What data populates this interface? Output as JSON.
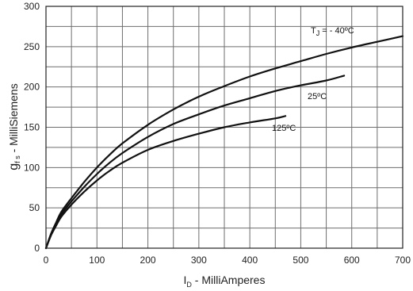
{
  "chart_data": {
    "type": "line",
    "xlabel": {
      "main": "I",
      "sub": "D",
      "rest": " - MilliAmperes"
    },
    "ylabel": {
      "main": "g",
      "sub": "f s",
      "rest": " - MilliSiemens"
    },
    "xlim": [
      0,
      700
    ],
    "ylim": [
      0,
      300
    ],
    "x_ticks": [
      0,
      100,
      200,
      300,
      400,
      500,
      600,
      700
    ],
    "y_ticks": [
      0,
      50,
      100,
      150,
      200,
      250,
      300
    ],
    "x_grid_step": 50,
    "y_grid_step": 25,
    "grid": true,
    "series": [
      {
        "name": "T  = - 40ºC",
        "name_parts": {
          "main": "T",
          "sub": "J",
          "rest": " = - 40ºC"
        },
        "x": [
          0,
          10,
          20,
          30,
          50,
          75,
          100,
          125,
          150,
          200,
          250,
          300,
          350,
          400,
          450,
          500,
          550,
          600,
          650,
          700
        ],
        "y": [
          0,
          18,
          32,
          45,
          62,
          82,
          100,
          116,
          130,
          153,
          172,
          188,
          201,
          213,
          223,
          232,
          241,
          249,
          256,
          263
        ]
      },
      {
        "name": "25ºC",
        "x": [
          0,
          10,
          20,
          30,
          50,
          75,
          100,
          125,
          150,
          200,
          250,
          300,
          350,
          400,
          450,
          500,
          550,
          585
        ],
        "y": [
          0,
          17,
          30,
          42,
          58,
          76,
          92,
          106,
          118,
          138,
          154,
          166,
          177,
          186,
          195,
          202,
          208,
          214
        ]
      },
      {
        "name": "125ºC",
        "x": [
          0,
          10,
          20,
          30,
          50,
          75,
          100,
          125,
          150,
          200,
          250,
          300,
          350,
          400,
          450,
          470
        ],
        "y": [
          0,
          16,
          28,
          39,
          54,
          70,
          84,
          96,
          106,
          122,
          133,
          142,
          150,
          156,
          161,
          164
        ]
      }
    ]
  }
}
